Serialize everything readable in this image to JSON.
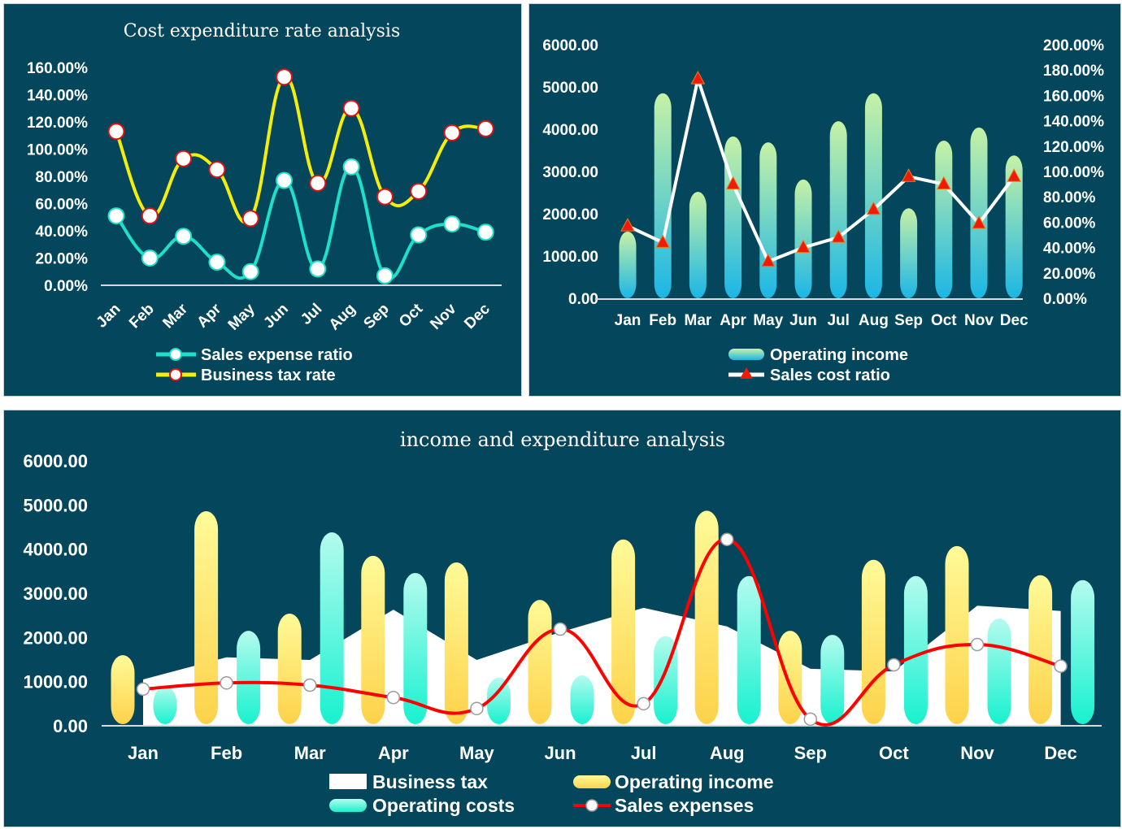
{
  "colors": {
    "panel_bg": "#04465c",
    "axis": "#d9d9d9",
    "text": "#ffffff",
    "sales_expense_ratio_line": "#1de0c8",
    "business_tax_rate_line": "#f5ee0a",
    "business_tax_rate_marker_stroke": "#e01010",
    "top_right_bar_top": "#c6f1a6",
    "top_right_bar_bottom": "#1bb6e6",
    "sales_cost_ratio_line": "#ffffff",
    "sales_cost_ratio_marker": "#ee1a0a",
    "income_bar_top": "#fffa98",
    "income_bar_bottom": "#fdd24a",
    "cost_bar_top": "#b4fbee",
    "cost_bar_bottom": "#18f1cf",
    "business_tax_area": "#ffffff",
    "sales_expenses_line": "#ff0000"
  },
  "chart_data": [
    {
      "id": "cost-expenditure-rate",
      "type": "line",
      "title": "Cost expenditure rate analysis",
      "categories": [
        "Jan",
        "Feb",
        "Mar",
        "Apr",
        "May",
        "Jun",
        "Jul",
        "Aug",
        "Sep",
        "Oct",
        "Nov",
        "Dec"
      ],
      "ylim": [
        0,
        160
      ],
      "yticks": [
        "0.00%",
        "20.00%",
        "40.00%",
        "60.00%",
        "80.00%",
        "100.00%",
        "120.00%",
        "140.00%",
        "160.00%"
      ],
      "ytick_values": [
        0,
        20,
        40,
        60,
        80,
        100,
        120,
        140,
        160
      ],
      "xlabel_rotation": "diagonal",
      "grid": false,
      "legend_position": "bottom",
      "series": [
        {
          "name": "Sales expense ratio",
          "unit": "%",
          "smooth": true,
          "values": [
            51,
            20,
            36,
            17,
            10,
            77,
            12,
            87,
            7,
            37,
            45,
            39
          ]
        },
        {
          "name": "Business tax rate",
          "unit": "%",
          "smooth": true,
          "values": [
            113,
            51,
            93,
            85,
            49,
            153,
            75,
            130,
            65,
            69,
            112,
            115
          ]
        }
      ]
    },
    {
      "id": "income-vs-cost-ratio",
      "type": "bar",
      "title": "",
      "categories": [
        "Jan",
        "Feb",
        "Mar",
        "Apr",
        "May",
        "Jun",
        "Jul",
        "Aug",
        "Sep",
        "Oct",
        "Nov",
        "Dec"
      ],
      "ylim": [
        0,
        6000
      ],
      "yticks": [
        "0.00",
        "1000.00",
        "2000.00",
        "3000.00",
        "4000.00",
        "5000.00",
        "6000.00"
      ],
      "ytick_values": [
        0,
        1000,
        2000,
        3000,
        4000,
        5000,
        6000
      ],
      "y2lim": [
        0,
        200
      ],
      "y2ticks": [
        "0.00%",
        "20.00%",
        "40.00%",
        "60.00%",
        "80.00%",
        "100.00%",
        "120.00%",
        "140.00%",
        "160.00%",
        "180.00%",
        "200.00%"
      ],
      "y2tick_values": [
        0,
        20,
        40,
        60,
        80,
        100,
        120,
        140,
        160,
        180,
        200
      ],
      "grid": false,
      "legend_position": "bottom",
      "series": [
        {
          "name": "Operating income",
          "type": "bar",
          "axis": "left",
          "values": [
            1580,
            4850,
            2520,
            3830,
            3690,
            2810,
            4190,
            4850,
            2130,
            3730,
            4040,
            3380
          ]
        },
        {
          "name": "Sales cost ratio",
          "type": "line",
          "axis": "right",
          "unit": "%",
          "values": [
            57,
            44,
            173,
            90,
            29,
            40,
            48,
            70,
            96,
            90,
            59,
            96
          ]
        }
      ]
    },
    {
      "id": "income-and-expenditure",
      "type": "bar",
      "title": "income and expenditure analysis",
      "categories": [
        "Jan",
        "Feb",
        "Mar",
        "Apr",
        "May",
        "Jun",
        "Jul",
        "Aug",
        "Sep",
        "Oct",
        "Nov",
        "Dec"
      ],
      "ylim": [
        0,
        6000
      ],
      "yticks": [
        "0.00",
        "1000.00",
        "2000.00",
        "3000.00",
        "4000.00",
        "5000.00",
        "6000.00"
      ],
      "ytick_values": [
        0,
        1000,
        2000,
        3000,
        4000,
        5000,
        6000
      ],
      "grid": false,
      "legend_position": "bottom",
      "series": [
        {
          "name": "Business tax",
          "type": "area",
          "values": [
            1050,
            1550,
            1490,
            2630,
            1490,
            2120,
            2670,
            2250,
            1290,
            1230,
            2720,
            2600
          ]
        },
        {
          "name": "Operating income",
          "type": "bar",
          "values": [
            1600,
            4860,
            2540,
            3850,
            3700,
            2850,
            4220,
            4870,
            2150,
            3760,
            4070,
            3410
          ]
        },
        {
          "name": "Operating costs",
          "type": "bar",
          "values": [
            900,
            2150,
            4380,
            3460,
            1090,
            1140,
            2030,
            3390,
            2060,
            3390,
            2430,
            3300
          ]
        },
        {
          "name": "Sales expenses",
          "type": "line",
          "smooth": true,
          "values": [
            830,
            970,
            920,
            640,
            390,
            2190,
            500,
            4220,
            150,
            1380,
            1840,
            1350
          ]
        }
      ]
    }
  ]
}
